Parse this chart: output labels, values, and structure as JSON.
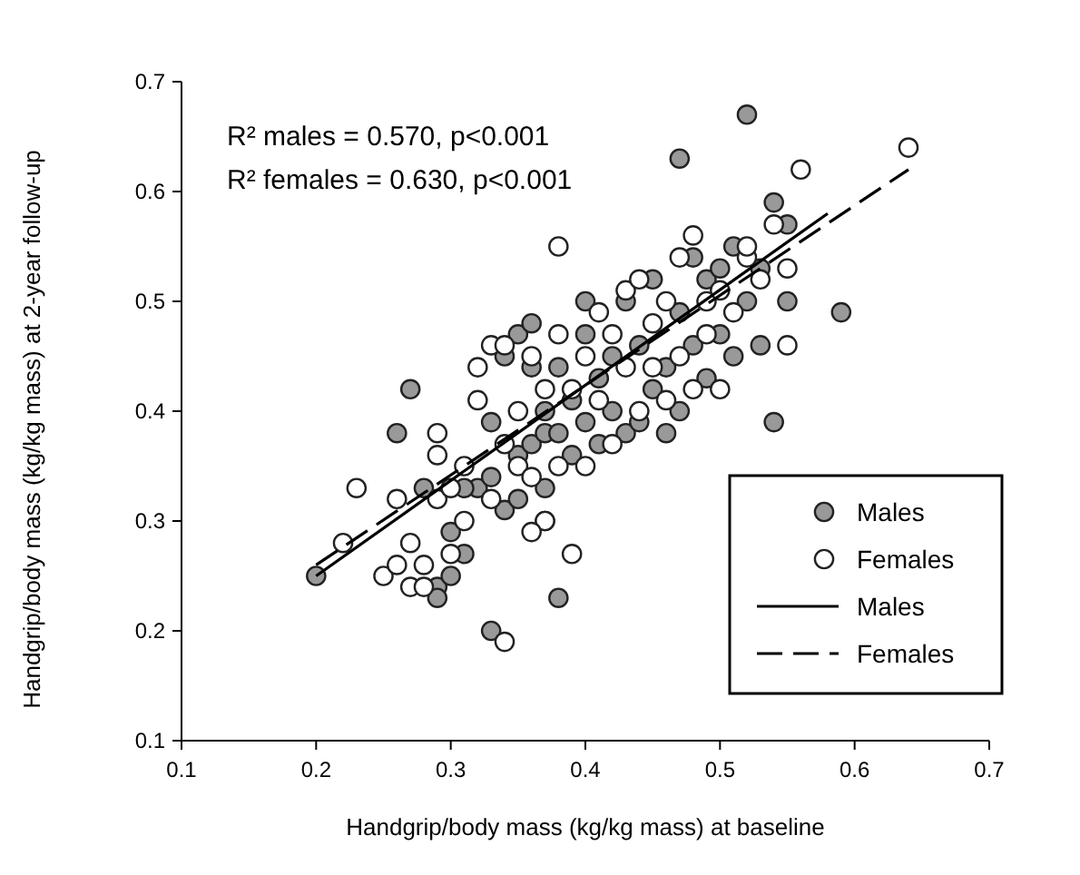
{
  "chart_data": {
    "type": "scatter",
    "xlabel": "Handgrip/body mass (kg/kg mass) at baseline",
    "ylabel": "Handgrip/body mass (kg/kg mass) at 2-year follow-up",
    "annotations": [
      "R² males = 0.570, p<0.001",
      "R² females = 0.630, p<0.001"
    ],
    "xlim": [
      0.1,
      0.7
    ],
    "ylim": [
      0.1,
      0.7
    ],
    "xticks": [
      0.1,
      0.2,
      0.3,
      0.4,
      0.5,
      0.6,
      0.7
    ],
    "yticks": [
      0.1,
      0.2,
      0.3,
      0.4,
      0.5,
      0.6,
      0.7
    ],
    "grid": false,
    "legend": "right",
    "series": [
      {
        "name": "Males",
        "color": "#999999",
        "marker": "circle",
        "x": [
          0.2,
          0.27,
          0.26,
          0.29,
          0.29,
          0.3,
          0.3,
          0.31,
          0.32,
          0.33,
          0.33,
          0.34,
          0.34,
          0.35,
          0.35,
          0.36,
          0.36,
          0.37,
          0.37,
          0.37,
          0.37,
          0.38,
          0.38,
          0.38,
          0.39,
          0.39,
          0.4,
          0.4,
          0.4,
          0.41,
          0.41,
          0.42,
          0.42,
          0.43,
          0.43,
          0.44,
          0.44,
          0.45,
          0.45,
          0.46,
          0.46,
          0.47,
          0.47,
          0.47,
          0.48,
          0.48,
          0.49,
          0.49,
          0.5,
          0.5,
          0.51,
          0.51,
          0.52,
          0.52,
          0.53,
          0.53,
          0.54,
          0.54,
          0.55,
          0.55,
          0.59,
          0.36,
          0.33,
          0.31,
          0.28,
          0.35
        ],
        "values": [
          0.25,
          0.42,
          0.38,
          0.24,
          0.23,
          0.25,
          0.29,
          0.27,
          0.33,
          0.2,
          0.34,
          0.31,
          0.45,
          0.47,
          0.36,
          0.37,
          0.44,
          0.4,
          0.38,
          0.33,
          0.3,
          0.23,
          0.44,
          0.38,
          0.36,
          0.41,
          0.47,
          0.5,
          0.39,
          0.43,
          0.37,
          0.4,
          0.45,
          0.5,
          0.38,
          0.39,
          0.46,
          0.42,
          0.52,
          0.38,
          0.44,
          0.49,
          0.63,
          0.4,
          0.54,
          0.46,
          0.52,
          0.43,
          0.53,
          0.47,
          0.55,
          0.45,
          0.67,
          0.5,
          0.53,
          0.46,
          0.39,
          0.59,
          0.5,
          0.57,
          0.49,
          0.48,
          0.39,
          0.33,
          0.33,
          0.32
        ]
      },
      {
        "name": "Females",
        "color": "#ffffff",
        "marker": "circle",
        "x": [
          0.22,
          0.23,
          0.25,
          0.26,
          0.27,
          0.28,
          0.28,
          0.29,
          0.29,
          0.29,
          0.3,
          0.3,
          0.31,
          0.31,
          0.32,
          0.32,
          0.33,
          0.33,
          0.34,
          0.34,
          0.34,
          0.35,
          0.35,
          0.36,
          0.36,
          0.37,
          0.37,
          0.38,
          0.38,
          0.38,
          0.39,
          0.39,
          0.4,
          0.4,
          0.41,
          0.41,
          0.42,
          0.42,
          0.43,
          0.43,
          0.44,
          0.44,
          0.45,
          0.45,
          0.46,
          0.46,
          0.47,
          0.47,
          0.48,
          0.48,
          0.49,
          0.49,
          0.5,
          0.5,
          0.51,
          0.52,
          0.52,
          0.53,
          0.54,
          0.55,
          0.55,
          0.56,
          0.64,
          0.26,
          0.36,
          0.27
        ],
        "values": [
          0.28,
          0.33,
          0.25,
          0.32,
          0.24,
          0.26,
          0.24,
          0.38,
          0.36,
          0.32,
          0.33,
          0.27,
          0.35,
          0.3,
          0.44,
          0.41,
          0.46,
          0.32,
          0.19,
          0.46,
          0.37,
          0.35,
          0.4,
          0.45,
          0.34,
          0.42,
          0.3,
          0.55,
          0.35,
          0.47,
          0.42,
          0.27,
          0.45,
          0.35,
          0.49,
          0.41,
          0.47,
          0.37,
          0.51,
          0.44,
          0.52,
          0.4,
          0.48,
          0.44,
          0.5,
          0.41,
          0.54,
          0.45,
          0.56,
          0.42,
          0.5,
          0.47,
          0.51,
          0.42,
          0.49,
          0.54,
          0.55,
          0.52,
          0.57,
          0.53,
          0.46,
          0.62,
          0.64,
          0.26,
          0.29,
          0.28
        ]
      },
      {
        "name": "Males",
        "type": "line",
        "color": "#000000",
        "line_style": "solid",
        "x": [
          0.2,
          0.58
        ],
        "values": [
          0.25,
          0.58
        ]
      },
      {
        "name": "Females",
        "type": "line",
        "color": "#000000",
        "line_style": "dashed",
        "x": [
          0.2,
          0.64
        ],
        "values": [
          0.26,
          0.62
        ]
      }
    ]
  }
}
